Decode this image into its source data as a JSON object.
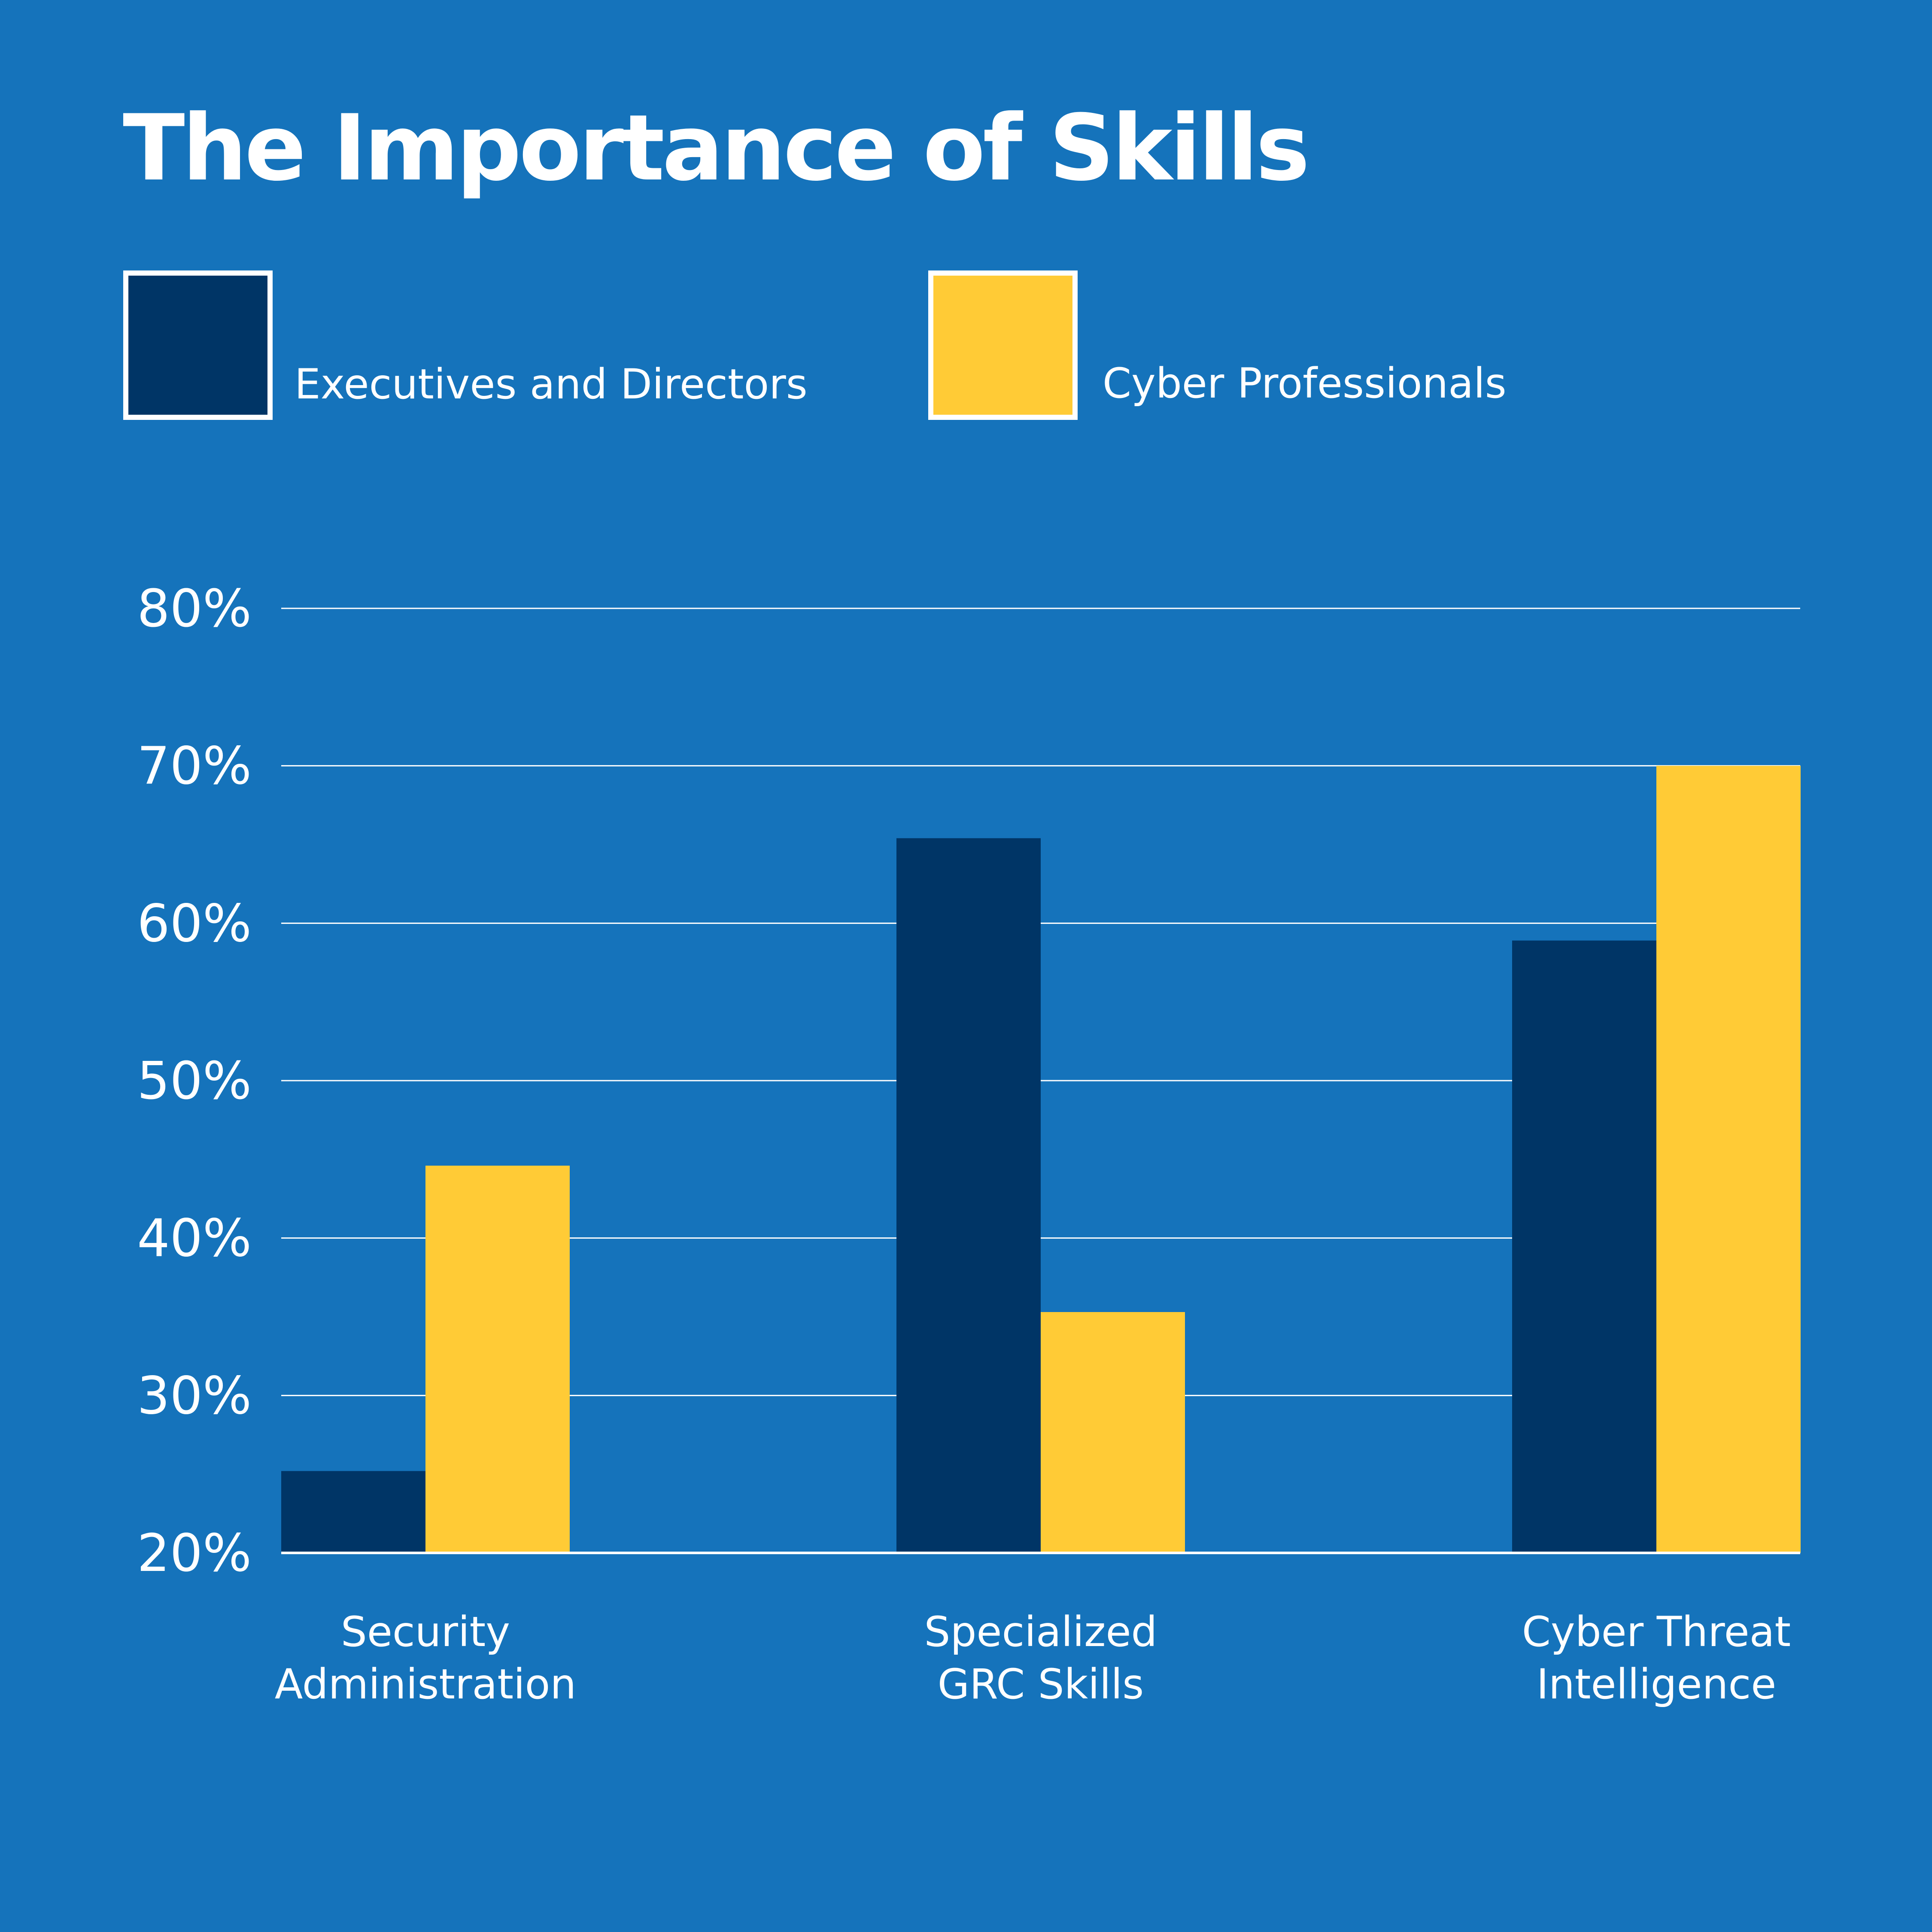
{
  "chart_data": {
    "type": "bar",
    "title": "The Importance of Skills",
    "categories": [
      [
        "Security",
        "Administration"
      ],
      [
        "Specialized",
        "GRC Skills"
      ],
      [
        "Cyber Threat",
        "Intelligence"
      ]
    ],
    "series": [
      {
        "name": "Executives and Directors",
        "values": [
          25.2,
          65.4,
          58.9
        ],
        "color": "#003566"
      },
      {
        "name": "Cyber Professionals",
        "values": [
          44.6,
          35.3,
          70.0
        ],
        "color": "#ffcb36"
      }
    ],
    "y_ticks": [
      "20%",
      "30%",
      "40%",
      "50%",
      "60%",
      "70%",
      "80%"
    ],
    "ylim": [
      20,
      80
    ],
    "grid": true,
    "legend_position": "top-left"
  },
  "colors": {
    "background": "#1573bb",
    "text": "#ffffff",
    "grid": "#ffffff",
    "legend_border": "#ffffff"
  }
}
